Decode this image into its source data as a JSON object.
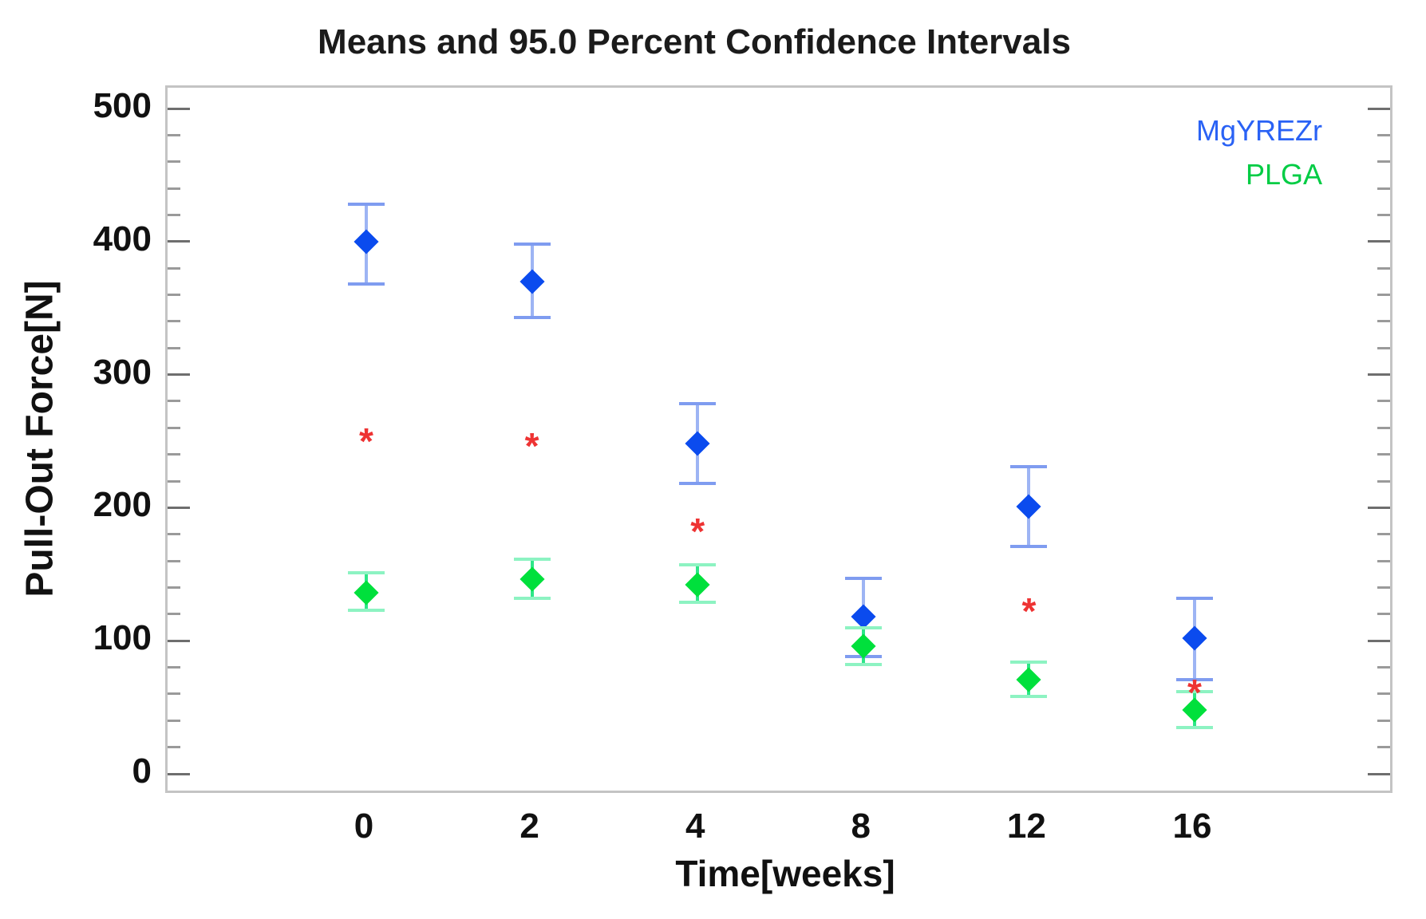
{
  "chart_data": {
    "type": "scatter",
    "title": "Means and 95.0 Percent Confidence Intervals",
    "xlabel": "Time[weeks]",
    "ylabel": "Pull-Out Force[N]",
    "categories": [
      "0",
      "2",
      "4",
      "8",
      "12",
      "16"
    ],
    "ylim": [
      0,
      500
    ],
    "y_major_ticks": [
      0,
      100,
      200,
      300,
      400,
      500
    ],
    "y_minor_tick_step": 20,
    "grid": false,
    "legend_position": "inside-top-right",
    "error_bar_meaning": "95.0 percent confidence interval",
    "series": [
      {
        "name": "MgYREZr",
        "marker": "diamond",
        "color": "#0b4bee",
        "errorbar_color": "#9db4f4",
        "cap_color": "#7f9cf0",
        "means": [
          400,
          370,
          248,
          118,
          201,
          102
        ],
        "ci_low": [
          368,
          343,
          218,
          88,
          171,
          71
        ],
        "ci_high": [
          428,
          398,
          278,
          147,
          231,
          132
        ]
      },
      {
        "name": "PLGA",
        "marker": "diamond",
        "color": "#00e03c",
        "errorbar_color": "#2ee688",
        "cap_color": "#8df3c2",
        "means": [
          136,
          146,
          142,
          96,
          71,
          48
        ],
        "ci_low": [
          123,
          132,
          129,
          82,
          58,
          35
        ],
        "ci_high": [
          151,
          161,
          157,
          110,
          84,
          62
        ]
      }
    ],
    "significance_markers": {
      "symbol": "*",
      "color": "#ee3333",
      "categories": [
        "0",
        "2",
        "4",
        "12",
        "16"
      ],
      "values": [
        255,
        251,
        187,
        127,
        66
      ]
    }
  },
  "legend": {
    "items": [
      {
        "label": "MgYREZr",
        "color": "#2a62f5"
      },
      {
        "label": "PLGA",
        "color": "#00cc44"
      }
    ]
  }
}
